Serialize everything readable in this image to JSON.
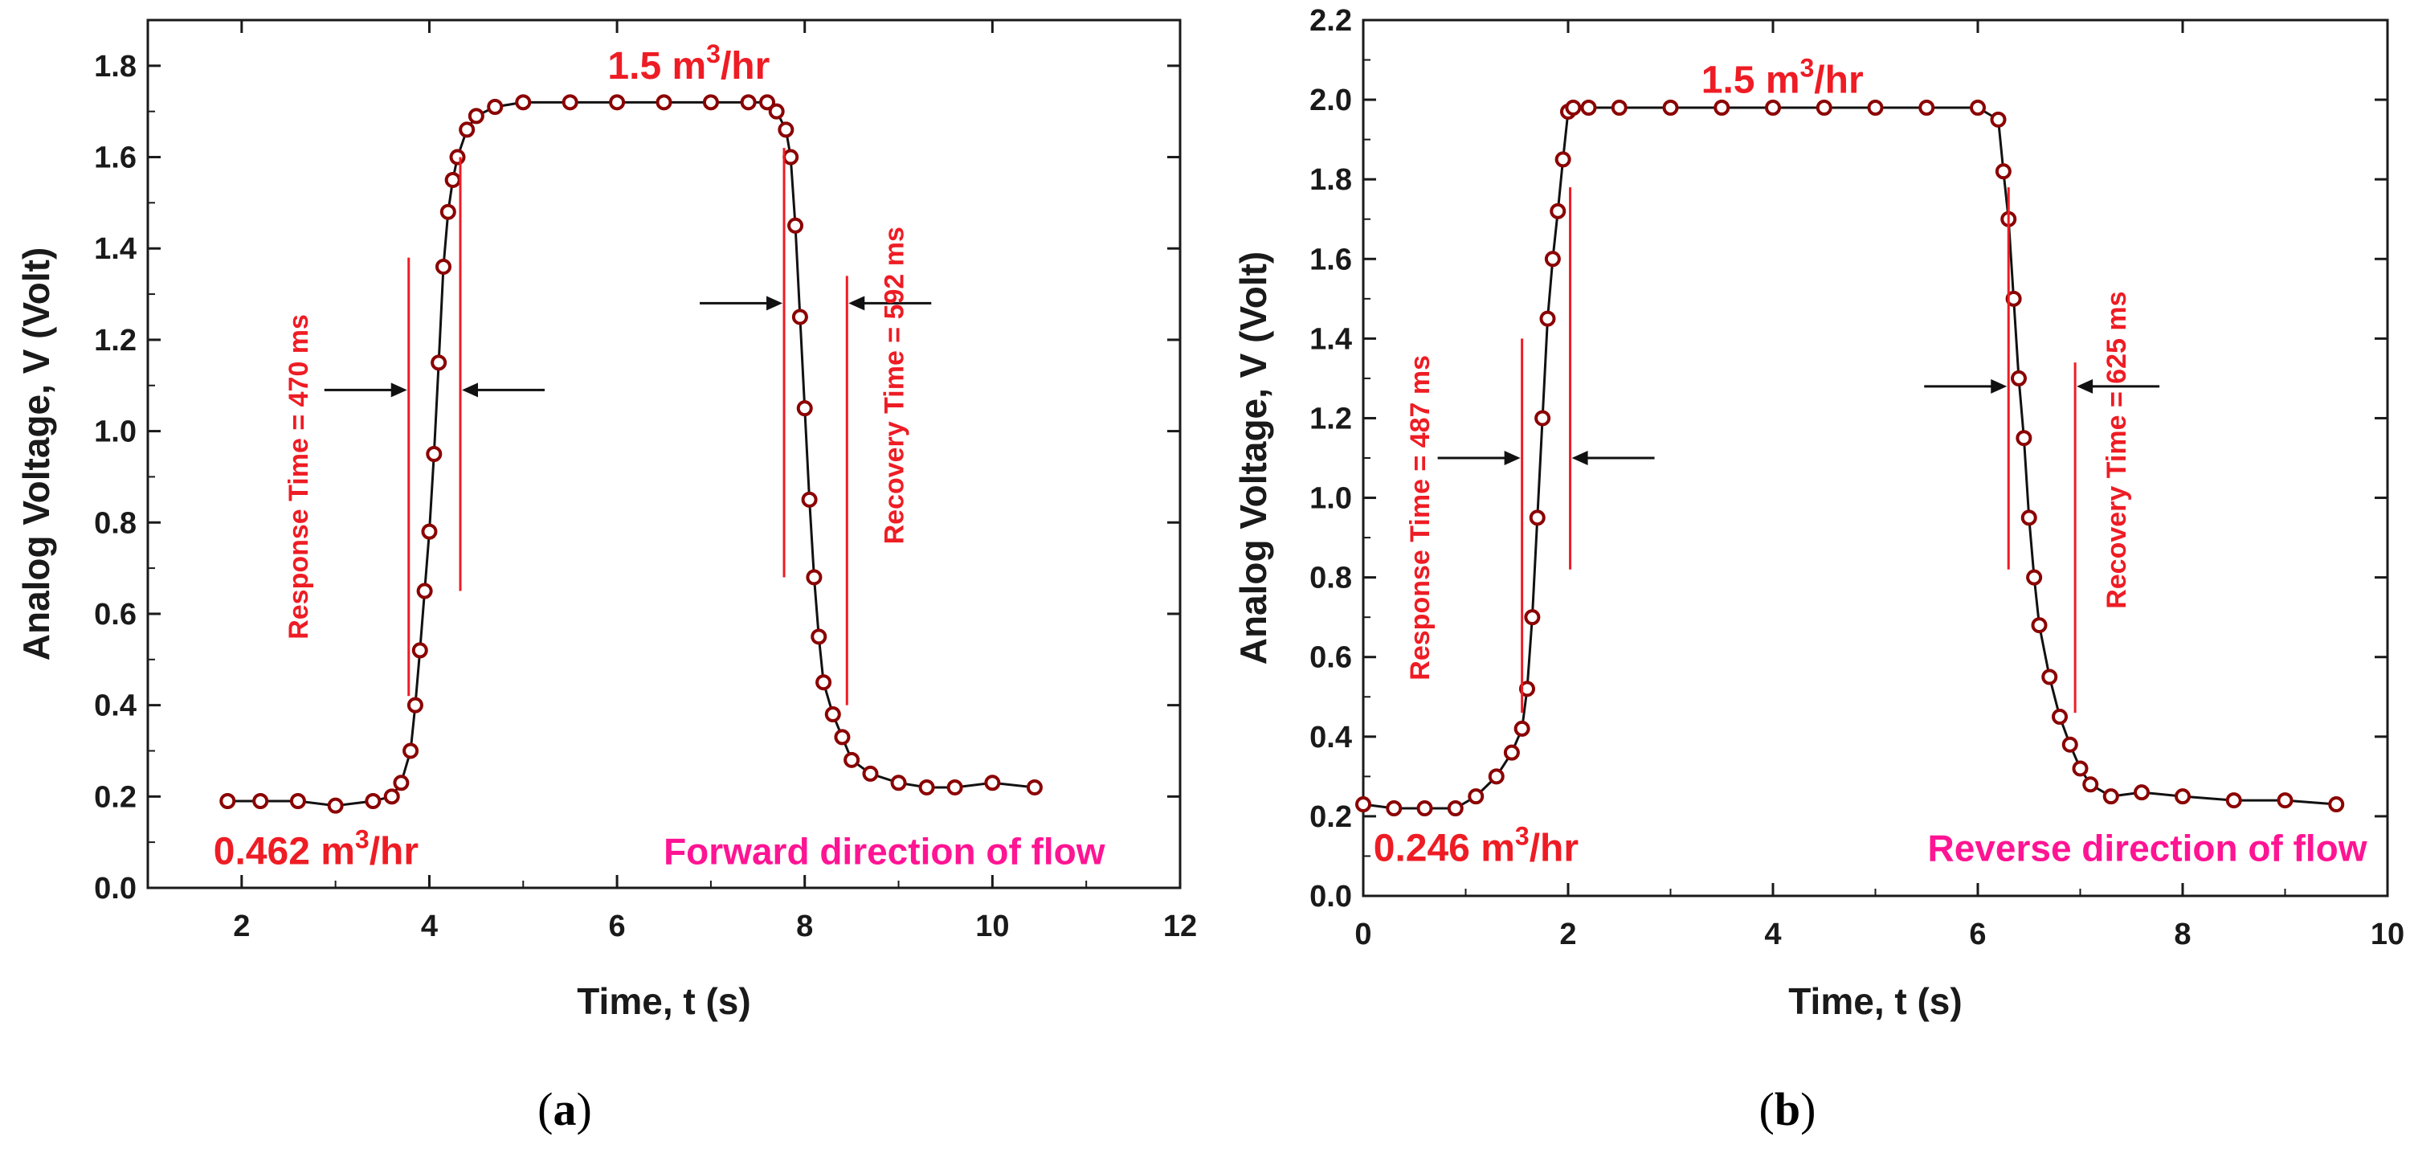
{
  "figure": {
    "panel_captions": [
      "(",
      "a",
      ")",
      "(",
      "b",
      ")"
    ]
  },
  "chart_data": [
    {
      "type": "scatter",
      "panel": "a",
      "xlabel": "Time, t (s)",
      "ylabel": "Analog Voltage, V (Volt)",
      "xlim": [
        1,
        12
      ],
      "ylim": [
        0,
        1.9
      ],
      "xticks": [
        2,
        4,
        6,
        8,
        10,
        12
      ],
      "yticks": [
        0.0,
        0.2,
        0.4,
        0.6,
        0.8,
        1.0,
        1.2,
        1.4,
        1.6,
        1.8
      ],
      "tick_labels_y": [
        "0.0",
        "0.2",
        "0.4",
        "0.6",
        "0.8",
        "1.0",
        "1.2",
        "1.4",
        "1.6",
        "1.8"
      ],
      "tick_labels_x": [
        "2",
        "4",
        "6",
        "8",
        "10",
        "12"
      ],
      "series": [
        {
          "name": "Analog voltage",
          "color": "#8b0000",
          "x": [
            1.85,
            2.2,
            2.6,
            3.0,
            3.4,
            3.6,
            3.7,
            3.8,
            3.85,
            3.9,
            3.95,
            4.0,
            4.05,
            4.1,
            4.15,
            4.2,
            4.25,
            4.3,
            4.4,
            4.5,
            4.7,
            5.0,
            5.5,
            6.0,
            6.5,
            7.0,
            7.4,
            7.6,
            7.7,
            7.8,
            7.85,
            7.9,
            7.95,
            8.0,
            8.05,
            8.1,
            8.15,
            8.2,
            8.3,
            8.4,
            8.5,
            8.7,
            9.0,
            9.3,
            9.6,
            10.0,
            10.45
          ],
          "y": [
            0.19,
            0.19,
            0.19,
            0.18,
            0.19,
            0.2,
            0.23,
            0.3,
            0.4,
            0.52,
            0.65,
            0.78,
            0.95,
            1.15,
            1.36,
            1.48,
            1.55,
            1.6,
            1.66,
            1.69,
            1.71,
            1.72,
            1.72,
            1.72,
            1.72,
            1.72,
            1.72,
            1.72,
            1.7,
            1.66,
            1.6,
            1.45,
            1.25,
            1.05,
            0.85,
            0.68,
            0.55,
            0.45,
            0.38,
            0.33,
            0.28,
            0.25,
            0.23,
            0.22,
            0.22,
            0.23,
            0.22
          ]
        }
      ],
      "annotations": {
        "top_flow": {
          "value": "1.5 m",
          "sup": "3",
          "unit": "/hr",
          "x": 5.9,
          "y": 1.8
        },
        "bottom_flow": {
          "value": "0.462 m",
          "sup": "3",
          "unit": "/hr",
          "x": 1.7,
          "y": 0.08
        },
        "direction": {
          "text": "Forward direction of flow",
          "x": 11.2,
          "y": 0.08
        },
        "response_time": {
          "text": "Response Time = 470 ms",
          "x": 2.6,
          "y": 0.9,
          "line1_x": 3.78,
          "line2_x": 4.33,
          "y_low": 0.42,
          "y_high": 1.38,
          "line2_y_low": 0.65,
          "line2_y_high": 1.6,
          "arrow_y": 1.09
        },
        "recovery_time": {
          "text": "Recovery Time = 592 ms",
          "x": 8.95,
          "y": 1.1,
          "line1_x": 7.78,
          "line2_x": 8.45,
          "y_low": 0.68,
          "y_high": 1.62,
          "line2_y_low": 0.4,
          "line2_y_high": 1.34,
          "arrow_y": 1.28
        }
      }
    },
    {
      "type": "scatter",
      "panel": "b",
      "xlabel": "Time, t (s)",
      "ylabel": "Analog Voltage, V (Volt)",
      "xlim": [
        0,
        10
      ],
      "ylim": [
        0,
        2.2
      ],
      "xticks": [
        0,
        2,
        4,
        6,
        8,
        10
      ],
      "yticks": [
        0.0,
        0.2,
        0.4,
        0.6,
        0.8,
        1.0,
        1.2,
        1.4,
        1.6,
        1.8,
        2.0,
        2.2
      ],
      "tick_labels_y": [
        "0.0",
        "0.2",
        "0.4",
        "0.6",
        "0.8",
        "1.0",
        "1.2",
        "1.4",
        "1.6",
        "1.8",
        "2.0",
        "2.2"
      ],
      "tick_labels_x": [
        "0",
        "2",
        "4",
        "6",
        "8",
        "10"
      ],
      "series": [
        {
          "name": "Analog voltage",
          "color": "#8b0000",
          "x": [
            0.0,
            0.3,
            0.6,
            0.9,
            1.1,
            1.3,
            1.45,
            1.55,
            1.6,
            1.65,
            1.7,
            1.75,
            1.8,
            1.85,
            1.9,
            1.95,
            2.0,
            2.05,
            2.2,
            2.5,
            3.0,
            3.5,
            4.0,
            4.5,
            5.0,
            5.5,
            6.0,
            6.2,
            6.25,
            6.3,
            6.35,
            6.4,
            6.45,
            6.5,
            6.55,
            6.6,
            6.7,
            6.8,
            6.9,
            7.0,
            7.1,
            7.3,
            7.6,
            8.0,
            8.5,
            9.0,
            9.5
          ],
          "y": [
            0.23,
            0.22,
            0.22,
            0.22,
            0.25,
            0.3,
            0.36,
            0.42,
            0.52,
            0.7,
            0.95,
            1.2,
            1.45,
            1.6,
            1.72,
            1.85,
            1.97,
            1.98,
            1.98,
            1.98,
            1.98,
            1.98,
            1.98,
            1.98,
            1.98,
            1.98,
            1.98,
            1.95,
            1.82,
            1.7,
            1.5,
            1.3,
            1.15,
            0.95,
            0.8,
            0.68,
            0.55,
            0.45,
            0.38,
            0.32,
            0.28,
            0.25,
            0.26,
            0.25,
            0.24,
            0.24,
            0.23
          ]
        }
      ],
      "annotations": {
        "top_flow": {
          "value": "1.5 m",
          "sup": "3",
          "unit": "/hr",
          "x": 3.3,
          "y": 2.05
        },
        "bottom_flow": {
          "value": "0.246 m",
          "sup": "3",
          "unit": "/hr",
          "x": 0.1,
          "y": 0.12
        },
        "direction": {
          "text": "Reverse direction of flow",
          "x": 9.8,
          "y": 0.12
        },
        "response_time": {
          "text": "Response Time = 487 ms",
          "x": 0.55,
          "y": 0.95,
          "line1_x": 1.55,
          "line2_x": 2.02,
          "y_low": 0.46,
          "y_high": 1.4,
          "line2_y_low": 0.82,
          "line2_y_high": 1.78,
          "arrow_y": 1.1
        },
        "recovery_time": {
          "text": "Recovery Time = 625 ms",
          "x": 7.35,
          "y": 1.12,
          "line1_x": 6.3,
          "line2_x": 6.95,
          "y_low": 0.82,
          "y_high": 1.78,
          "line2_y_low": 0.46,
          "line2_y_high": 1.34,
          "arrow_y": 1.28
        }
      }
    }
  ]
}
